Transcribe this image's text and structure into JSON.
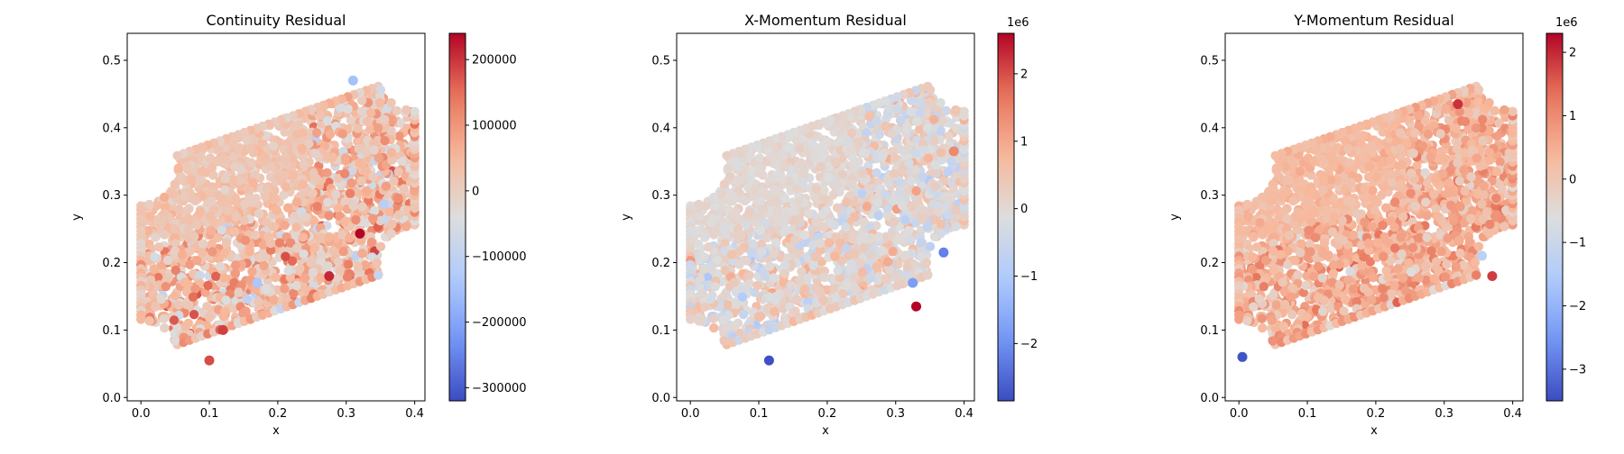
{
  "figure": {
    "colormap": "coolwarm",
    "colormap_stops": [
      "#3b4cc0",
      "#7396f5",
      "#b0cbfc",
      "#dddddd",
      "#f7b89c",
      "#e7745b",
      "#b40426"
    ]
  },
  "chart_data": [
    {
      "type": "scatter",
      "title": "Continuity Residual",
      "xlabel": "x",
      "ylabel": "y",
      "xlim": [
        -0.02,
        0.415
      ],
      "ylim": [
        -0.005,
        0.54
      ],
      "xticks": [
        0.0,
        0.1,
        0.2,
        0.3,
        0.4
      ],
      "xtick_labels": [
        "0.0",
        "0.1",
        "0.2",
        "0.3",
        "0.4"
      ],
      "yticks": [
        0.0,
        0.1,
        0.2,
        0.3,
        0.4,
        0.5
      ],
      "ytick_labels": [
        "0.0",
        "0.1",
        "0.2",
        "0.3",
        "0.4",
        "0.5"
      ],
      "colorbar": {
        "min": -320000,
        "max": 240000,
        "ticks": [
          -300000,
          -200000,
          -100000,
          0,
          100000,
          200000
        ],
        "tick_labels": [
          "−300000",
          "−200000",
          "−100000",
          "0",
          "100000",
          "200000"
        ],
        "scale_label": ""
      },
      "field": {
        "mean": 35000,
        "spread": 75000,
        "seed": 11,
        "grad": 0.25
      },
      "hotspots": [
        {
          "x": 0.32,
          "y": 0.243,
          "value": 240000
        },
        {
          "x": 0.275,
          "y": 0.18,
          "value": 210000
        },
        {
          "x": 0.12,
          "y": 0.1,
          "value": 190000
        },
        {
          "x": 0.1,
          "y": 0.055,
          "value": 180000
        },
        {
          "x": 0.31,
          "y": 0.47,
          "value": -150000
        },
        {
          "x": 0.17,
          "y": 0.17,
          "value": -140000
        }
      ]
    },
    {
      "type": "scatter",
      "title": "X-Momentum Residual",
      "xlabel": "x",
      "ylabel": "y",
      "xlim": [
        -0.02,
        0.415
      ],
      "ylim": [
        -0.005,
        0.54
      ],
      "xticks": [
        0.0,
        0.1,
        0.2,
        0.3,
        0.4
      ],
      "xtick_labels": [
        "0.0",
        "0.1",
        "0.2",
        "0.3",
        "0.4"
      ],
      "yticks": [
        0.0,
        0.1,
        0.2,
        0.3,
        0.4,
        0.5
      ],
      "ytick_labels": [
        "0.0",
        "0.1",
        "0.2",
        "0.3",
        "0.4",
        "0.5"
      ],
      "colorbar": {
        "min": -2.85,
        "max": 2.6,
        "ticks": [
          -2,
          -1,
          0,
          1,
          2
        ],
        "tick_labels": [
          "−2",
          "−1",
          "0",
          "1",
          "2"
        ],
        "scale_label": "1e6"
      },
      "field": {
        "mean": 0.05,
        "spread": 0.55,
        "seed": 23,
        "grad": 0.0
      },
      "hotspots": [
        {
          "x": 0.33,
          "y": 0.135,
          "value": 2.6
        },
        {
          "x": 0.115,
          "y": 0.055,
          "value": -2.8
        },
        {
          "x": 0.37,
          "y": 0.215,
          "value": -2.2
        },
        {
          "x": 0.325,
          "y": 0.17,
          "value": -1.8
        },
        {
          "x": 0.385,
          "y": 0.365,
          "value": 1.4
        }
      ]
    },
    {
      "type": "scatter",
      "title": "Y-Momentum Residual",
      "xlabel": "x",
      "ylabel": "y",
      "xlim": [
        -0.02,
        0.415
      ],
      "ylim": [
        -0.005,
        0.54
      ],
      "xticks": [
        0.0,
        0.1,
        0.2,
        0.3,
        0.4
      ],
      "xtick_labels": [
        "0.0",
        "0.1",
        "0.2",
        "0.3",
        "0.4"
      ],
      "yticks": [
        0.0,
        0.1,
        0.2,
        0.3,
        0.4,
        0.5
      ],
      "ytick_labels": [
        "0.0",
        "0.1",
        "0.2",
        "0.3",
        "0.4",
        "0.5"
      ],
      "colorbar": {
        "min": -3.5,
        "max": 2.3,
        "ticks": [
          -3,
          -2,
          -1,
          0,
          1,
          2
        ],
        "tick_labels": [
          "−3",
          "−2",
          "−1",
          "0",
          "1",
          "2"
        ],
        "scale_label": "1e6"
      },
      "field": {
        "mean": 0.45,
        "spread": 0.55,
        "seed": 37,
        "grad": 0.35
      },
      "hotspots": [
        {
          "x": 0.005,
          "y": 0.06,
          "value": -3.4
        },
        {
          "x": 0.32,
          "y": 0.435,
          "value": 1.9
        },
        {
          "x": 0.355,
          "y": 0.21,
          "value": -1.3
        },
        {
          "x": 0.37,
          "y": 0.18,
          "value": 1.8
        }
      ]
    }
  ]
}
